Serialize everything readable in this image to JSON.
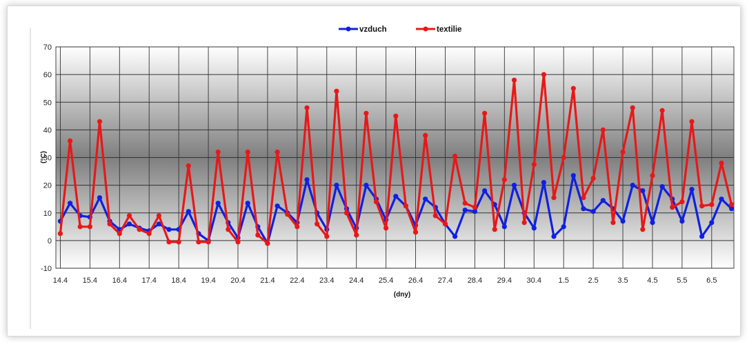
{
  "chart_data": {
    "type": "line",
    "title": "",
    "xlabel": "(dny)",
    "ylabel": "(°C)",
    "ylim": [
      -10,
      70
    ],
    "yticks": [
      "-10",
      "0",
      "10",
      "20",
      "30",
      "40",
      "50",
      "60",
      "70"
    ],
    "xticks": [
      "14.4",
      "15.4",
      "16.4",
      "17.4",
      "18.4",
      "19.4",
      "20.4",
      "21.4",
      "22.4",
      "23.4",
      "24.4",
      "25.4",
      "26.4",
      "27.4",
      "28.4",
      "29.4",
      "30.4",
      "1.5",
      "2.5",
      "3.5",
      "4.5",
      "5.5",
      "6.5"
    ],
    "grid": true,
    "legend_position": "top",
    "series": [
      {
        "name": "vzduch",
        "color": "#1020e0",
        "x": [
          0,
          0.33,
          0.67,
          1,
          1.33,
          1.67,
          2,
          2.33,
          2.67,
          3,
          3.33,
          3.67,
          4,
          4.33,
          4.67,
          5,
          5.33,
          5.67,
          6,
          6.33,
          6.67,
          7,
          7.33,
          7.67,
          8,
          8.33,
          8.67,
          9,
          9.33,
          9.67,
          10,
          10.33,
          10.67,
          11,
          11.33,
          11.67,
          12,
          12.33,
          12.67,
          13,
          13.33,
          13.67,
          14,
          14.33,
          14.67,
          15,
          15.33,
          15.67,
          16,
          16.33,
          16.67,
          17,
          17.33,
          17.67,
          18,
          18.33,
          18.67,
          19,
          19.33,
          19.67,
          20,
          20.33,
          20.67,
          21,
          21.33,
          21.67,
          22,
          22.33,
          22.67
        ],
        "values": [
          7,
          13.5,
          9,
          8.5,
          15.5,
          7,
          4,
          6,
          4.5,
          3.5,
          6,
          4,
          4,
          10.5,
          2.5,
          0,
          13.5,
          6.5,
          1,
          13.5,
          5,
          -1,
          12.5,
          10,
          6.5,
          22,
          10,
          4,
          20,
          11.5,
          4.5,
          20,
          15,
          7.5,
          16,
          12.5,
          5.5,
          15,
          12,
          6,
          1.5,
          11,
          10.5,
          18,
          13,
          5,
          20,
          10,
          4.5,
          21,
          1.5,
          5,
          23.5,
          11.5,
          10.5,
          14.5,
          11.5,
          7,
          20,
          18,
          6.5,
          19.5,
          15,
          7,
          18.5,
          1.5,
          6.5,
          15,
          11.5
        ]
      },
      {
        "name": "textilie",
        "color": "#e81818",
        "x": [
          0,
          0.33,
          0.67,
          1,
          1.33,
          1.67,
          2,
          2.33,
          2.67,
          3,
          3.33,
          3.67,
          4,
          4.33,
          4.67,
          5,
          5.33,
          5.67,
          6,
          6.33,
          6.67,
          7,
          7.33,
          7.67,
          8,
          8.33,
          8.67,
          9,
          9.33,
          9.67,
          10,
          10.33,
          10.67,
          11,
          11.33,
          11.67,
          12,
          12.33,
          12.67,
          13,
          13.33,
          13.67,
          14,
          14.33,
          14.67,
          15,
          15.33,
          15.67,
          16,
          16.33,
          16.67,
          17,
          17.33,
          17.67,
          18,
          18.33,
          18.67,
          19,
          19.33,
          19.67,
          20,
          20.33,
          20.67,
          21,
          21.33,
          21.67,
          22,
          22.33,
          22.67
        ],
        "values": [
          2.5,
          36,
          5,
          5,
          43,
          6,
          2.5,
          9,
          4,
          2.5,
          9,
          -0.5,
          -0.5,
          27,
          -0.5,
          -0.5,
          32,
          4,
          -0.5,
          32,
          2,
          -1,
          32,
          9.5,
          5,
          48,
          6,
          1.5,
          54,
          10,
          2,
          46,
          14,
          4.5,
          45,
          12.5,
          3,
          38,
          9,
          6,
          30.5,
          13.5,
          12,
          46,
          4,
          22,
          58,
          6.5,
          27.5,
          60,
          15.5,
          30,
          55,
          15.5,
          22.5,
          40,
          6.5,
          32,
          48,
          4,
          23.5,
          47,
          12,
          14,
          43,
          12.5,
          13,
          28,
          13
        ]
      }
    ]
  }
}
